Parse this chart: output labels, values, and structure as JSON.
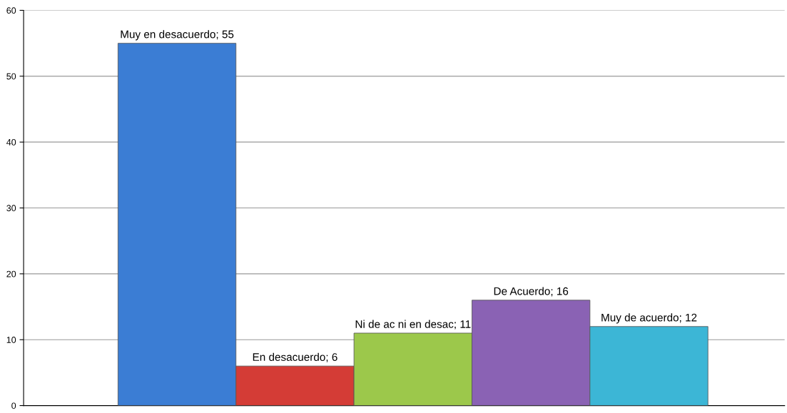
{
  "chart_data": {
    "type": "bar",
    "categories": [
      null,
      null,
      null,
      null,
      null
    ],
    "values": [
      55,
      6,
      11,
      16,
      12
    ],
    "colors": [
      "#3b7dd4",
      "#d43c36",
      "#9cc84b",
      "#8a62b4",
      "#3cb6d6"
    ],
    "value_labels": [
      "Muy en desacuerdo; 55",
      "En desacuerdo; 6",
      "Ni de ac ni en desac; 11",
      "De Acuerdo; 16",
      "Muy de acuerdo; 12"
    ],
    "ylim": [
      0,
      60
    ],
    "yticks": [
      0,
      10,
      20,
      30,
      40,
      50,
      60
    ],
    "grid": "y",
    "tick_labels": "y"
  }
}
